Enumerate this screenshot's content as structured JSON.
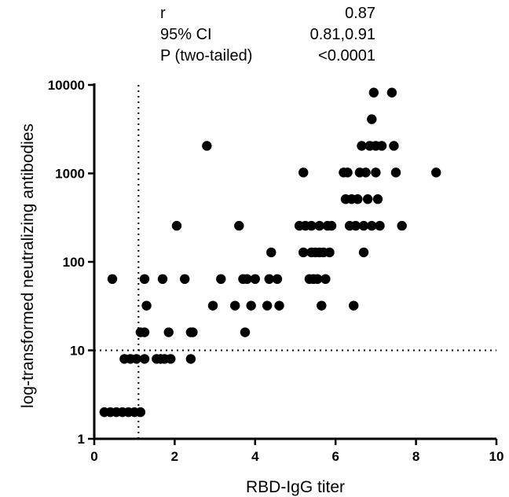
{
  "stats": [
    {
      "label": "r",
      "value": "0.87"
    },
    {
      "label": "95% CI",
      "value": "0.81,0.91"
    },
    {
      "label": "P (two-tailed)",
      "value": "<0.0001"
    }
  ],
  "chart_data": {
    "type": "scatter",
    "xlabel": "RBD-IgG titer",
    "ylabel": "log-transformed neutralizing antibodies",
    "xlim": [
      0,
      10
    ],
    "ylim": [
      1,
      10000
    ],
    "y_scale": "log",
    "x_ticks": [
      0,
      2,
      4,
      6,
      8,
      10
    ],
    "y_ticks": [
      1,
      10,
      100,
      1000,
      10000
    ],
    "grid": false,
    "reference_lines": [
      {
        "axis": "x",
        "value": 1.1,
        "style": "dotted"
      },
      {
        "axis": "y",
        "value": 10,
        "style": "dotted"
      }
    ],
    "marker_color": "#000000",
    "points": [
      [
        0.25,
        2
      ],
      [
        0.4,
        2
      ],
      [
        0.55,
        2
      ],
      [
        0.7,
        2
      ],
      [
        0.85,
        2
      ],
      [
        1.0,
        2
      ],
      [
        1.15,
        2
      ],
      [
        0.45,
        64
      ],
      [
        0.75,
        8
      ],
      [
        0.9,
        8
      ],
      [
        1.05,
        8
      ],
      [
        1.15,
        16
      ],
      [
        1.25,
        16
      ],
      [
        1.25,
        8
      ],
      [
        1.25,
        64
      ],
      [
        1.3,
        32
      ],
      [
        1.55,
        8
      ],
      [
        1.65,
        8
      ],
      [
        1.75,
        8
      ],
      [
        1.7,
        64
      ],
      [
        1.85,
        16
      ],
      [
        1.9,
        8
      ],
      [
        2.05,
        256
      ],
      [
        2.25,
        64
      ],
      [
        2.4,
        16
      ],
      [
        2.45,
        16
      ],
      [
        2.4,
        8
      ],
      [
        2.8,
        2048
      ],
      [
        2.95,
        32
      ],
      [
        3.15,
        64
      ],
      [
        3.5,
        32
      ],
      [
        3.6,
        256
      ],
      [
        3.7,
        64
      ],
      [
        3.75,
        16
      ],
      [
        3.8,
        64
      ],
      [
        3.9,
        32
      ],
      [
        4.0,
        64
      ],
      [
        4.3,
        32
      ],
      [
        4.35,
        64
      ],
      [
        4.4,
        128
      ],
      [
        4.55,
        64
      ],
      [
        4.6,
        32
      ],
      [
        5.1,
        256
      ],
      [
        5.2,
        1024
      ],
      [
        5.2,
        128
      ],
      [
        5.25,
        256
      ],
      [
        5.35,
        64
      ],
      [
        5.4,
        128
      ],
      [
        5.4,
        256
      ],
      [
        5.45,
        64
      ],
      [
        5.5,
        128
      ],
      [
        5.55,
        64
      ],
      [
        5.6,
        128
      ],
      [
        5.6,
        256
      ],
      [
        5.65,
        32
      ],
      [
        5.7,
        128
      ],
      [
        5.75,
        64
      ],
      [
        5.8,
        256
      ],
      [
        5.85,
        128
      ],
      [
        5.9,
        256
      ],
      [
        6.2,
        1024
      ],
      [
        6.25,
        512
      ],
      [
        6.3,
        1024
      ],
      [
        6.35,
        256
      ],
      [
        6.4,
        512
      ],
      [
        6.45,
        32
      ],
      [
        6.5,
        256
      ],
      [
        6.55,
        512
      ],
      [
        6.6,
        1024
      ],
      [
        6.65,
        2048
      ],
      [
        6.7,
        256
      ],
      [
        6.7,
        128
      ],
      [
        6.75,
        1024
      ],
      [
        6.8,
        512
      ],
      [
        6.85,
        2048
      ],
      [
        6.9,
        256
      ],
      [
        6.9,
        4096
      ],
      [
        6.95,
        8192
      ],
      [
        7.0,
        1024
      ],
      [
        7.0,
        2048
      ],
      [
        7.05,
        512
      ],
      [
        7.1,
        256
      ],
      [
        7.15,
        2048
      ],
      [
        7.4,
        8192
      ],
      [
        7.45,
        2048
      ],
      [
        7.5,
        1024
      ],
      [
        7.65,
        256
      ],
      [
        8.5,
        1024
      ]
    ]
  }
}
